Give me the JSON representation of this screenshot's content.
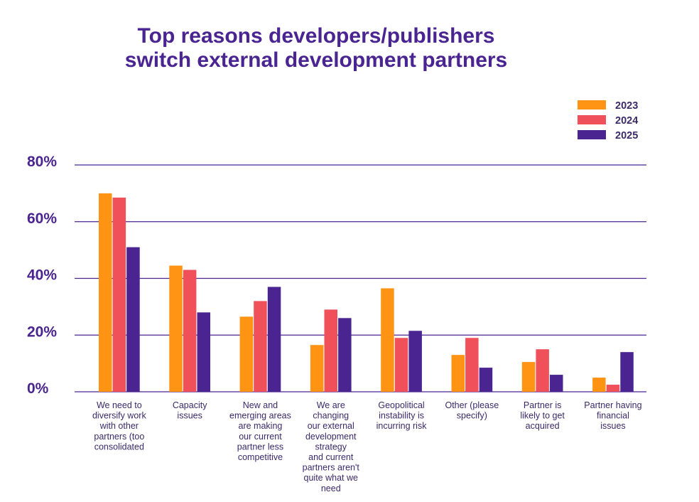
{
  "chart_data": {
    "type": "bar",
    "title_lines": [
      "Top reasons developers/publishers",
      "switch external development partners"
    ],
    "xlabel": "",
    "ylabel": "",
    "ylim": [
      0,
      80
    ],
    "y_ticks": [
      "0%",
      "20%",
      "40%",
      "60%",
      "80%"
    ],
    "y_tick_values": [
      0,
      20,
      40,
      60,
      80
    ],
    "grid": true,
    "legend_position": "top-right",
    "categories": [
      [
        "We need to",
        "diversify work",
        "with other",
        "partners (too",
        "consolidated"
      ],
      [
        "Capacity",
        "issues"
      ],
      [
        "New and",
        "emerging areas",
        "are making",
        "our current",
        "partner less",
        "competitive"
      ],
      [
        "We are",
        "changing",
        "our external",
        "development",
        "strategy",
        "and current",
        "partners aren't",
        "quite what we",
        "need"
      ],
      [
        "Geopolitical",
        "instability is",
        "incurring risk"
      ],
      [
        "Other (please",
        "specify)"
      ],
      [
        "Partner is",
        "likely to get",
        "acquired"
      ],
      [
        "Partner having",
        "financial",
        "issues"
      ]
    ],
    "series": [
      {
        "name": "2023",
        "color": "#ff9414",
        "values": [
          70,
          44.5,
          26.5,
          16.5,
          36.5,
          13,
          10.5,
          5
        ]
      },
      {
        "name": "2024",
        "color": "#f0505a",
        "values": [
          68.5,
          43,
          32,
          29,
          19,
          19,
          15,
          2.5
        ]
      },
      {
        "name": "2025",
        "color": "#4a2491",
        "values": [
          51,
          28,
          37,
          26,
          21.5,
          8.5,
          6,
          14
        ]
      }
    ],
    "colors": {
      "title": "#4a2491",
      "grid": "#4a2491",
      "axis_text": "#4a2491"
    }
  }
}
